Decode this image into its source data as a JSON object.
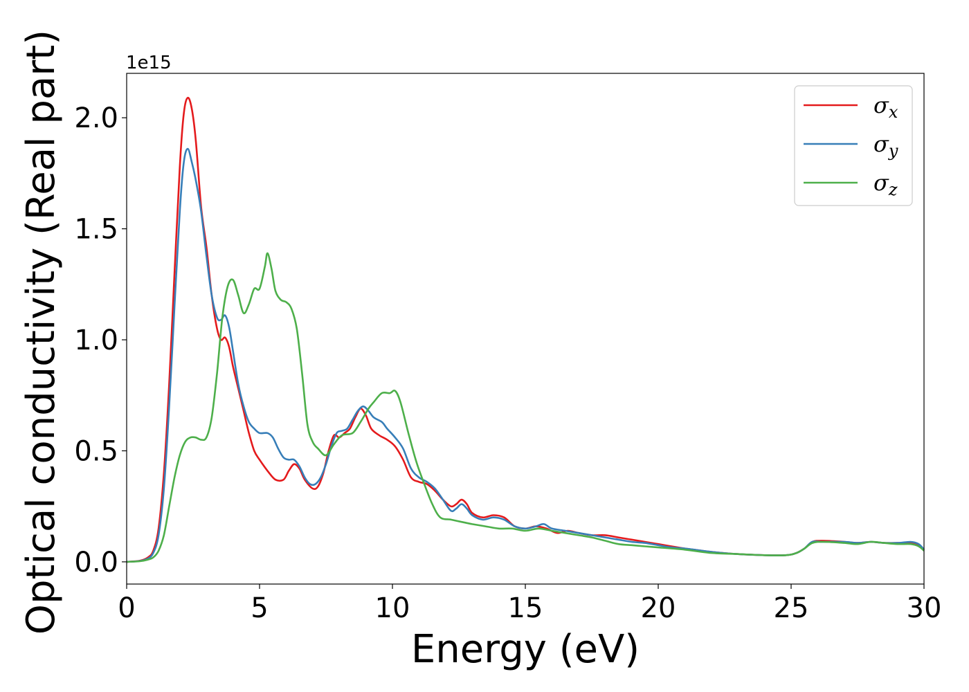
{
  "chart_data": {
    "type": "line",
    "xlabel": "Energy (eV)",
    "ylabel": "Optical conductivity (Real part)",
    "y_offset_text": "1e15",
    "xlim": [
      0,
      30
    ],
    "ylim": [
      -0.1,
      2.2
    ],
    "x_ticks": [
      0,
      5,
      10,
      15,
      20,
      25,
      30
    ],
    "x_tick_labels": [
      "0",
      "5",
      "10",
      "15",
      "20",
      "25",
      "30"
    ],
    "y_ticks": [
      0.0,
      0.5,
      1.0,
      1.5,
      2.0
    ],
    "y_tick_labels": [
      "0.0",
      "0.5",
      "1.0",
      "1.5",
      "2.0"
    ],
    "grid": false,
    "legend_position": "top-right",
    "series": [
      {
        "name": "σx",
        "legend_base": "σ",
        "legend_sub": "x",
        "color": "#e41a1c",
        "points": [
          [
            0,
            0
          ],
          [
            0.5,
            0.005
          ],
          [
            0.8,
            0.02
          ],
          [
            1.0,
            0.05
          ],
          [
            1.2,
            0.15
          ],
          [
            1.4,
            0.4
          ],
          [
            1.6,
            0.8
          ],
          [
            1.8,
            1.3
          ],
          [
            2.0,
            1.78
          ],
          [
            2.15,
            2.02
          ],
          [
            2.3,
            2.09
          ],
          [
            2.45,
            2.04
          ],
          [
            2.6,
            1.9
          ],
          [
            2.8,
            1.6
          ],
          [
            3.0,
            1.42
          ],
          [
            3.2,
            1.2
          ],
          [
            3.4,
            1.05
          ],
          [
            3.55,
            1.0
          ],
          [
            3.7,
            1.01
          ],
          [
            3.85,
            0.97
          ],
          [
            4.0,
            0.88
          ],
          [
            4.2,
            0.78
          ],
          [
            4.4,
            0.68
          ],
          [
            4.6,
            0.58
          ],
          [
            4.8,
            0.5
          ],
          [
            5.0,
            0.46
          ],
          [
            5.3,
            0.41
          ],
          [
            5.6,
            0.37
          ],
          [
            5.9,
            0.37
          ],
          [
            6.1,
            0.41
          ],
          [
            6.3,
            0.44
          ],
          [
            6.5,
            0.42
          ],
          [
            6.7,
            0.37
          ],
          [
            7.0,
            0.33
          ],
          [
            7.2,
            0.34
          ],
          [
            7.4,
            0.4
          ],
          [
            7.6,
            0.5
          ],
          [
            7.8,
            0.57
          ],
          [
            8.0,
            0.56
          ],
          [
            8.2,
            0.58
          ],
          [
            8.4,
            0.6
          ],
          [
            8.6,
            0.65
          ],
          [
            8.8,
            0.69
          ],
          [
            9.0,
            0.66
          ],
          [
            9.2,
            0.6
          ],
          [
            9.5,
            0.57
          ],
          [
            9.8,
            0.55
          ],
          [
            10.1,
            0.52
          ],
          [
            10.4,
            0.46
          ],
          [
            10.7,
            0.38
          ],
          [
            11.0,
            0.36
          ],
          [
            11.3,
            0.35
          ],
          [
            11.6,
            0.32
          ],
          [
            11.9,
            0.28
          ],
          [
            12.2,
            0.25
          ],
          [
            12.4,
            0.26
          ],
          [
            12.6,
            0.28
          ],
          [
            12.8,
            0.26
          ],
          [
            13.0,
            0.22
          ],
          [
            13.4,
            0.2
          ],
          [
            13.8,
            0.21
          ],
          [
            14.2,
            0.2
          ],
          [
            14.6,
            0.16
          ],
          [
            15.0,
            0.15
          ],
          [
            15.4,
            0.16
          ],
          [
            15.8,
            0.15
          ],
          [
            16.2,
            0.13
          ],
          [
            16.6,
            0.14
          ],
          [
            17.0,
            0.13
          ],
          [
            17.5,
            0.12
          ],
          [
            18.0,
            0.12
          ],
          [
            18.5,
            0.11
          ],
          [
            19.0,
            0.1
          ],
          [
            19.5,
            0.09
          ],
          [
            20.0,
            0.08
          ],
          [
            20.5,
            0.07
          ],
          [
            21.0,
            0.06
          ],
          [
            22.0,
            0.045
          ],
          [
            23.0,
            0.035
          ],
          [
            24.0,
            0.03
          ],
          [
            24.8,
            0.03
          ],
          [
            25.2,
            0.04
          ],
          [
            25.5,
            0.06
          ],
          [
            25.8,
            0.09
          ],
          [
            26.2,
            0.095
          ],
          [
            27.0,
            0.09
          ],
          [
            27.5,
            0.085
          ],
          [
            28.0,
            0.09
          ],
          [
            28.5,
            0.085
          ],
          [
            29.0,
            0.085
          ],
          [
            29.5,
            0.085
          ],
          [
            29.8,
            0.075
          ],
          [
            30.0,
            0.055
          ]
        ]
      },
      {
        "name": "σy",
        "legend_base": "σ",
        "legend_sub": "y",
        "color": "#377eb8",
        "points": [
          [
            0,
            0
          ],
          [
            0.5,
            0.004
          ],
          [
            0.8,
            0.015
          ],
          [
            1.0,
            0.04
          ],
          [
            1.2,
            0.12
          ],
          [
            1.4,
            0.33
          ],
          [
            1.6,
            0.7
          ],
          [
            1.8,
            1.15
          ],
          [
            2.0,
            1.58
          ],
          [
            2.15,
            1.8
          ],
          [
            2.3,
            1.86
          ],
          [
            2.45,
            1.8
          ],
          [
            2.6,
            1.72
          ],
          [
            2.8,
            1.58
          ],
          [
            3.0,
            1.38
          ],
          [
            3.2,
            1.2
          ],
          [
            3.4,
            1.1
          ],
          [
            3.55,
            1.09
          ],
          [
            3.7,
            1.11
          ],
          [
            3.85,
            1.06
          ],
          [
            4.0,
            0.95
          ],
          [
            4.2,
            0.8
          ],
          [
            4.4,
            0.7
          ],
          [
            4.6,
            0.63
          ],
          [
            4.8,
            0.6
          ],
          [
            5.0,
            0.58
          ],
          [
            5.3,
            0.58
          ],
          [
            5.5,
            0.56
          ],
          [
            5.7,
            0.51
          ],
          [
            5.9,
            0.47
          ],
          [
            6.1,
            0.46
          ],
          [
            6.3,
            0.46
          ],
          [
            6.5,
            0.43
          ],
          [
            6.7,
            0.38
          ],
          [
            6.9,
            0.35
          ],
          [
            7.1,
            0.35
          ],
          [
            7.3,
            0.38
          ],
          [
            7.5,
            0.44
          ],
          [
            7.7,
            0.52
          ],
          [
            7.9,
            0.58
          ],
          [
            8.1,
            0.59
          ],
          [
            8.3,
            0.6
          ],
          [
            8.5,
            0.64
          ],
          [
            8.7,
            0.68
          ],
          [
            8.9,
            0.7
          ],
          [
            9.1,
            0.68
          ],
          [
            9.3,
            0.65
          ],
          [
            9.6,
            0.63
          ],
          [
            9.8,
            0.6
          ],
          [
            10.1,
            0.56
          ],
          [
            10.4,
            0.51
          ],
          [
            10.7,
            0.42
          ],
          [
            11.0,
            0.38
          ],
          [
            11.3,
            0.36
          ],
          [
            11.6,
            0.33
          ],
          [
            11.9,
            0.28
          ],
          [
            12.2,
            0.23
          ],
          [
            12.4,
            0.24
          ],
          [
            12.6,
            0.26
          ],
          [
            12.8,
            0.24
          ],
          [
            13.0,
            0.21
          ],
          [
            13.4,
            0.19
          ],
          [
            13.8,
            0.2
          ],
          [
            14.2,
            0.19
          ],
          [
            14.6,
            0.16
          ],
          [
            15.0,
            0.15
          ],
          [
            15.4,
            0.16
          ],
          [
            15.7,
            0.17
          ],
          [
            16.0,
            0.15
          ],
          [
            16.5,
            0.14
          ],
          [
            17.0,
            0.13
          ],
          [
            17.5,
            0.12
          ],
          [
            18.0,
            0.11
          ],
          [
            18.5,
            0.1
          ],
          [
            19.0,
            0.09
          ],
          [
            19.5,
            0.085
          ],
          [
            20.0,
            0.075
          ],
          [
            20.5,
            0.065
          ],
          [
            21.0,
            0.06
          ],
          [
            22.0,
            0.045
          ],
          [
            23.0,
            0.035
          ],
          [
            24.0,
            0.03
          ],
          [
            24.8,
            0.03
          ],
          [
            25.2,
            0.04
          ],
          [
            25.5,
            0.06
          ],
          [
            25.8,
            0.09
          ],
          [
            26.2,
            0.09
          ],
          [
            27.0,
            0.09
          ],
          [
            27.5,
            0.085
          ],
          [
            28.0,
            0.09
          ],
          [
            28.5,
            0.085
          ],
          [
            29.0,
            0.085
          ],
          [
            29.5,
            0.09
          ],
          [
            29.8,
            0.08
          ],
          [
            30.0,
            0.055
          ]
        ]
      },
      {
        "name": "σz",
        "legend_base": "σ",
        "legend_sub": "z",
        "color": "#4daf4a",
        "points": [
          [
            0,
            0
          ],
          [
            0.5,
            0.003
          ],
          [
            0.8,
            0.01
          ],
          [
            1.0,
            0.02
          ],
          [
            1.2,
            0.05
          ],
          [
            1.4,
            0.12
          ],
          [
            1.6,
            0.25
          ],
          [
            1.8,
            0.38
          ],
          [
            2.0,
            0.48
          ],
          [
            2.2,
            0.54
          ],
          [
            2.4,
            0.56
          ],
          [
            2.6,
            0.56
          ],
          [
            2.8,
            0.55
          ],
          [
            3.0,
            0.56
          ],
          [
            3.2,
            0.65
          ],
          [
            3.4,
            0.85
          ],
          [
            3.6,
            1.1
          ],
          [
            3.8,
            1.24
          ],
          [
            4.0,
            1.27
          ],
          [
            4.2,
            1.2
          ],
          [
            4.4,
            1.12
          ],
          [
            4.6,
            1.16
          ],
          [
            4.8,
            1.23
          ],
          [
            5.0,
            1.23
          ],
          [
            5.2,
            1.33
          ],
          [
            5.3,
            1.39
          ],
          [
            5.45,
            1.32
          ],
          [
            5.6,
            1.22
          ],
          [
            5.8,
            1.18
          ],
          [
            6.0,
            1.17
          ],
          [
            6.2,
            1.14
          ],
          [
            6.4,
            1.05
          ],
          [
            6.6,
            0.85
          ],
          [
            6.8,
            0.62
          ],
          [
            7.0,
            0.54
          ],
          [
            7.2,
            0.51
          ],
          [
            7.5,
            0.48
          ],
          [
            7.8,
            0.53
          ],
          [
            8.1,
            0.57
          ],
          [
            8.5,
            0.58
          ],
          [
            8.8,
            0.63
          ],
          [
            9.1,
            0.69
          ],
          [
            9.3,
            0.72
          ],
          [
            9.6,
            0.76
          ],
          [
            9.9,
            0.76
          ],
          [
            10.1,
            0.77
          ],
          [
            10.3,
            0.72
          ],
          [
            10.6,
            0.58
          ],
          [
            10.9,
            0.45
          ],
          [
            11.2,
            0.35
          ],
          [
            11.5,
            0.26
          ],
          [
            11.8,
            0.2
          ],
          [
            12.2,
            0.19
          ],
          [
            12.6,
            0.18
          ],
          [
            13.0,
            0.17
          ],
          [
            13.5,
            0.16
          ],
          [
            14.0,
            0.15
          ],
          [
            14.5,
            0.15
          ],
          [
            15.0,
            0.14
          ],
          [
            15.5,
            0.15
          ],
          [
            16.0,
            0.14
          ],
          [
            16.5,
            0.13
          ],
          [
            17.0,
            0.12
          ],
          [
            17.5,
            0.11
          ],
          [
            18.0,
            0.095
          ],
          [
            18.5,
            0.08
          ],
          [
            19.0,
            0.075
          ],
          [
            19.5,
            0.07
          ],
          [
            20.0,
            0.065
          ],
          [
            21.0,
            0.055
          ],
          [
            22.0,
            0.04
          ],
          [
            23.0,
            0.035
          ],
          [
            24.0,
            0.03
          ],
          [
            24.8,
            0.03
          ],
          [
            25.2,
            0.04
          ],
          [
            25.5,
            0.06
          ],
          [
            25.8,
            0.085
          ],
          [
            26.2,
            0.09
          ],
          [
            27.0,
            0.085
          ],
          [
            27.5,
            0.08
          ],
          [
            28.0,
            0.09
          ],
          [
            28.5,
            0.085
          ],
          [
            29.0,
            0.08
          ],
          [
            29.5,
            0.08
          ],
          [
            29.8,
            0.07
          ],
          [
            30.0,
            0.05
          ]
        ]
      }
    ]
  }
}
